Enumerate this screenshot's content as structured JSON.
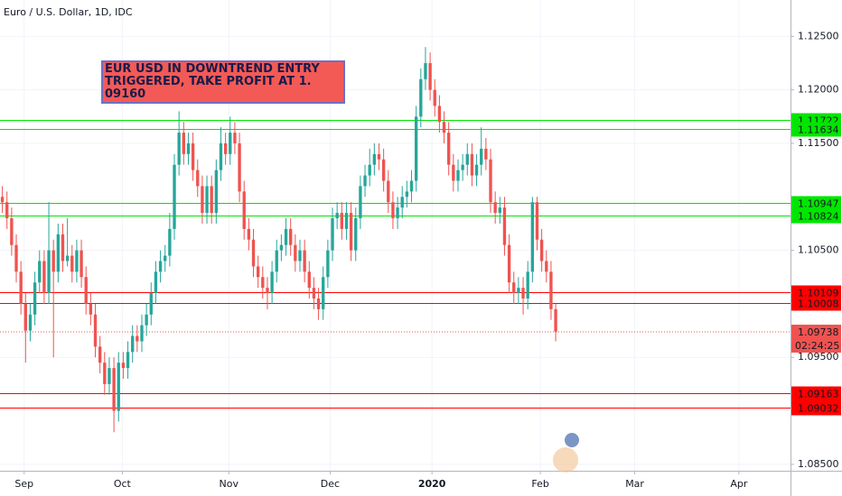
{
  "chart_data": {
    "type": "candlestick",
    "title": "Euro / U.S. Dollar, 1D, IDC",
    "annotation": "EUR USD IN DOWNTREND ENTRY TRIGGERED, TAKE PROFIT AT 1. 09160",
    "up_color": "#26a69a",
    "down_color": "#ef5350",
    "open": [
      1.11,
      1.1095,
      1.108,
      1.1055,
      1.103,
      1.1,
      1.0975,
      1.099,
      1.102,
      1.104,
      1.101,
      1.105,
      1.103,
      1.1065,
      1.104,
      1.1045,
      1.103,
      1.105,
      1.1025,
      1.1,
      1.099,
      1.096,
      1.0945,
      1.0925,
      1.094,
      1.09,
      1.0945,
      1.094,
      1.0955,
      1.097,
      1.0965,
      1.098,
      1.099,
      1.101,
      1.103,
      1.104,
      1.1045,
      1.107,
      1.113,
      1.116,
      1.114,
      1.115,
      1.1125,
      1.111,
      1.1085,
      1.111,
      1.1085,
      1.1125,
      1.115,
      1.114,
      1.116,
      1.115,
      1.1105,
      1.107,
      1.106,
      1.1035,
      1.1025,
      1.1015,
      1.101,
      1.103,
      1.105,
      1.1055,
      1.107,
      1.1055,
      1.104,
      1.105,
      1.103,
      1.1015,
      1.1005,
      1.0995,
      1.1025,
      1.105,
      1.108,
      1.1085,
      1.107,
      1.1085,
      1.105,
      1.108,
      1.111,
      1.112,
      1.113,
      1.114,
      1.1135,
      1.1115,
      1.1095,
      1.108,
      1.109,
      1.11,
      1.1105,
      1.1115,
      1.1175,
      1.121,
      1.1225,
      1.12,
      1.1185,
      1.117,
      1.116,
      1.113,
      1.1115,
      1.1125,
      1.113,
      1.114,
      1.112,
      1.113,
      1.1145,
      1.1135,
      1.1095,
      1.1085,
      1.109,
      1.1055,
      1.102,
      1.101,
      1.1015,
      1.1005,
      1.103,
      1.1095,
      1.106,
      1.104,
      1.103,
      1.0995
    ],
    "high": [
      1.111,
      1.1105,
      1.109,
      1.1065,
      1.104,
      1.101,
      1.1,
      1.103,
      1.105,
      1.105,
      1.1095,
      1.106,
      1.1075,
      1.1075,
      1.108,
      1.1055,
      1.106,
      1.106,
      1.1035,
      1.101,
      1.1,
      1.097,
      1.0955,
      1.095,
      1.095,
      1.0955,
      1.0955,
      1.0965,
      1.098,
      1.098,
      1.099,
      1.1,
      1.102,
      1.104,
      1.105,
      1.1055,
      1.1085,
      1.114,
      1.118,
      1.117,
      1.116,
      1.116,
      1.1135,
      1.112,
      1.112,
      1.112,
      1.1135,
      1.1165,
      1.116,
      1.1175,
      1.117,
      1.116,
      1.1115,
      1.108,
      1.107,
      1.1045,
      1.1035,
      1.1025,
      1.104,
      1.106,
      1.1065,
      1.108,
      1.108,
      1.1065,
      1.106,
      1.106,
      1.104,
      1.1025,
      1.1015,
      1.1035,
      1.106,
      1.109,
      1.1095,
      1.1095,
      1.1095,
      1.1095,
      1.109,
      1.112,
      1.113,
      1.1145,
      1.115,
      1.115,
      1.1145,
      1.1125,
      1.1105,
      1.11,
      1.111,
      1.1115,
      1.1125,
      1.1185,
      1.122,
      1.124,
      1.1235,
      1.121,
      1.1195,
      1.118,
      1.117,
      1.114,
      1.1135,
      1.114,
      1.115,
      1.115,
      1.114,
      1.1165,
      1.1155,
      1.1145,
      1.1105,
      1.11,
      1.11,
      1.1065,
      1.103,
      1.1025,
      1.1025,
      1.104,
      1.11,
      1.11,
      1.107,
      1.105,
      1.104,
      1.1
    ],
    "low": [
      1.1085,
      1.107,
      1.1045,
      1.102,
      1.099,
      1.0945,
      1.0965,
      1.098,
      1.101,
      1.1,
      1.1,
      1.095,
      1.102,
      1.103,
      1.1035,
      1.102,
      1.102,
      1.1015,
      1.099,
      1.098,
      1.095,
      1.0935,
      1.0915,
      1.0915,
      1.088,
      1.089,
      1.093,
      1.093,
      1.0945,
      1.0955,
      1.0955,
      1.097,
      1.098,
      1.1,
      1.102,
      1.103,
      1.1035,
      1.106,
      1.112,
      1.113,
      1.113,
      1.1115,
      1.11,
      1.1075,
      1.1075,
      1.1075,
      1.1075,
      1.1115,
      1.113,
      1.113,
      1.114,
      1.1095,
      1.106,
      1.105,
      1.1025,
      1.1015,
      1.1005,
      1.0995,
      1.1,
      1.102,
      1.104,
      1.1045,
      1.1045,
      1.103,
      1.103,
      1.102,
      1.1005,
      1.0995,
      1.0985,
      1.0985,
      1.1015,
      1.104,
      1.107,
      1.106,
      1.106,
      1.104,
      1.104,
      1.107,
      1.11,
      1.111,
      1.112,
      1.1125,
      1.1105,
      1.1085,
      1.107,
      1.107,
      1.108,
      1.109,
      1.1095,
      1.1105,
      1.1165,
      1.12,
      1.119,
      1.1175,
      1.116,
      1.115,
      1.112,
      1.1105,
      1.1105,
      1.1115,
      1.112,
      1.111,
      1.111,
      1.112,
      1.1125,
      1.1085,
      1.1075,
      1.1075,
      1.1045,
      1.101,
      1.1,
      1.1,
      1.099,
      1.0995,
      1.102,
      1.105,
      1.103,
      1.102,
      1.0985,
      1.0965
    ],
    "close": [
      1.1095,
      1.108,
      1.1055,
      1.103,
      1.1,
      1.0975,
      1.099,
      1.102,
      1.104,
      1.101,
      1.105,
      1.103,
      1.1065,
      1.104,
      1.1045,
      1.103,
      1.105,
      1.1025,
      1.1,
      1.099,
      1.096,
      1.0945,
      1.0925,
      1.094,
      1.09,
      1.0945,
      1.094,
      1.0955,
      1.097,
      1.0965,
      1.098,
      1.099,
      1.101,
      1.103,
      1.104,
      1.1045,
      1.107,
      1.113,
      1.116,
      1.114,
      1.115,
      1.1125,
      1.111,
      1.1085,
      1.111,
      1.1085,
      1.1125,
      1.115,
      1.114,
      1.116,
      1.115,
      1.1105,
      1.107,
      1.106,
      1.1035,
      1.1025,
      1.1015,
      1.101,
      1.103,
      1.105,
      1.1055,
      1.107,
      1.1055,
      1.104,
      1.105,
      1.103,
      1.1015,
      1.1005,
      1.0995,
      1.1025,
      1.105,
      1.108,
      1.1085,
      1.107,
      1.1085,
      1.105,
      1.108,
      1.111,
      1.112,
      1.113,
      1.114,
      1.1135,
      1.1115,
      1.1095,
      1.108,
      1.109,
      1.11,
      1.1105,
      1.1115,
      1.1175,
      1.121,
      1.1225,
      1.12,
      1.1185,
      1.117,
      1.116,
      1.113,
      1.1115,
      1.1125,
      1.113,
      1.114,
      1.112,
      1.113,
      1.1145,
      1.1135,
      1.1095,
      1.1085,
      1.109,
      1.1055,
      1.102,
      1.101,
      1.1015,
      1.1005,
      1.103,
      1.1095,
      1.106,
      1.104,
      1.103,
      1.0995,
      1.0974
    ],
    "xlim": [
      -0.5,
      169.5
    ],
    "xticks": [
      {
        "value": 4.7,
        "label": "Sep"
      },
      {
        "value": 25.8,
        "label": "Oct"
      },
      {
        "value": 48.7,
        "label": "Nov"
      },
      {
        "value": 70.5,
        "label": "Dec"
      },
      {
        "value": 92.4,
        "label": "2020"
      },
      {
        "value": 115.7,
        "label": "Feb"
      },
      {
        "value": 136,
        "label": "Mar"
      },
      {
        "value": 158.4,
        "label": "Apr"
      }
    ],
    "ylim": [
      1.0844,
      1.1284
    ],
    "yticks": [
      {
        "value": 1.125,
        "label": "1.12500"
      },
      {
        "value": 1.12,
        "label": "1.12000"
      },
      {
        "value": 1.115,
        "label": "1.11500"
      },
      {
        "value": 1.105,
        "label": "1.10500"
      },
      {
        "value": 1.095,
        "label": "1.09500"
      },
      {
        "value": 1.085,
        "label": "1.08500"
      }
    ],
    "grid": true,
    "levels": [
      {
        "value": 1.11722,
        "color": "#00e600"
      },
      {
        "value": 1.11634,
        "color": "#00e600"
      },
      {
        "value": 1.10947,
        "color": "#00e600"
      },
      {
        "value": 1.10824,
        "color": "#00e600"
      },
      {
        "value": 1.10109,
        "color": "#ff0000"
      },
      {
        "value": 1.10008,
        "color": "#ff0000"
      },
      {
        "value": 1.09163,
        "color": "#ff0000"
      },
      {
        "value": 1.09032,
        "color": "#ff0000"
      }
    ],
    "last_price": 1.09738,
    "countdown": "02:24:25"
  }
}
